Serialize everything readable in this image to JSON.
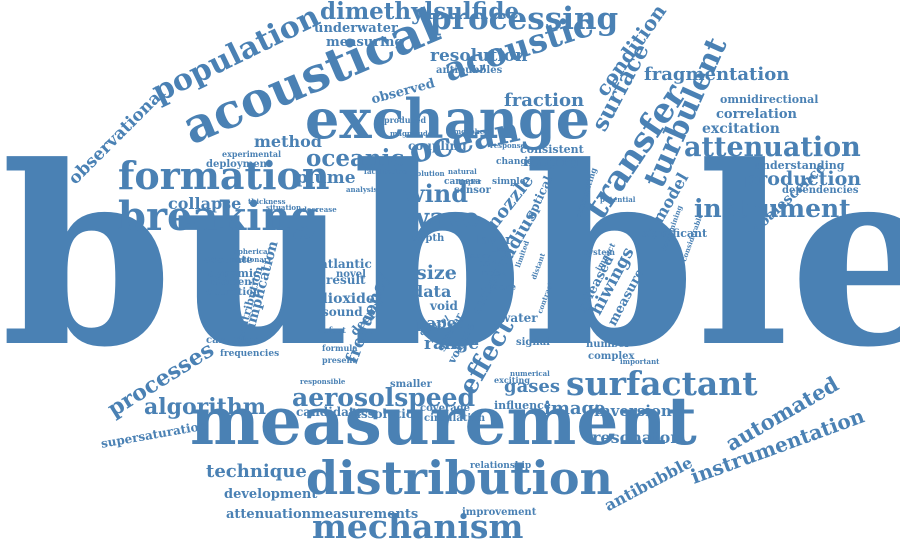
{
  "accent_color": "#4a81b4",
  "words": [
    {
      "id": "bubble",
      "text": "bubble"
    },
    {
      "id": "measurement",
      "text": "measurement"
    },
    {
      "id": "exchange",
      "text": "exchange"
    },
    {
      "id": "acoustical",
      "text": "acoustical"
    },
    {
      "id": "distribution",
      "text": "distribution"
    },
    {
      "id": "mechanism",
      "text": "mechanism"
    },
    {
      "id": "breaking",
      "text": "breaking"
    },
    {
      "id": "formation",
      "text": "formation"
    },
    {
      "id": "surfactant",
      "text": "surfactant"
    },
    {
      "id": "ocean",
      "text": "ocean"
    },
    {
      "id": "acoustic",
      "text": "acoustic"
    },
    {
      "id": "processing",
      "text": "processing"
    },
    {
      "id": "dimethylsulfide",
      "text": "dimethylsulfide"
    },
    {
      "id": "population",
      "text": "population"
    },
    {
      "id": "attenuation",
      "text": "attenuation"
    },
    {
      "id": "instrument",
      "text": "instrument"
    },
    {
      "id": "aerosolspeed",
      "text": "aerosolspeed"
    },
    {
      "id": "transfer",
      "text": "transfer"
    },
    {
      "id": "turbulent",
      "text": "turbulent"
    },
    {
      "id": "oceanic",
      "text": "oceanic"
    },
    {
      "id": "wave",
      "text": "wave"
    },
    {
      "id": "wind",
      "text": "wind"
    },
    {
      "id": "effect",
      "text": "effect"
    },
    {
      "id": "algorithm",
      "text": "algorithm"
    },
    {
      "id": "processes",
      "text": "processes"
    },
    {
      "id": "technique",
      "text": "technique"
    },
    {
      "id": "automated",
      "text": "automated"
    },
    {
      "id": "instrumentation",
      "text": "instrumentation"
    },
    {
      "id": "fragmentation",
      "text": "fragmentation"
    },
    {
      "id": "production",
      "text": "production"
    },
    {
      "id": "observational",
      "text": "observational"
    },
    {
      "id": "surface",
      "text": "surface"
    },
    {
      "id": "condition",
      "text": "condition"
    },
    {
      "id": "resolution",
      "text": "resolution"
    },
    {
      "id": "fraction",
      "text": "fraction"
    },
    {
      "id": "collapse",
      "text": "collapse"
    },
    {
      "id": "plume",
      "text": "plume"
    },
    {
      "id": "method",
      "text": "method"
    },
    {
      "id": "gases",
      "text": "gases"
    },
    {
      "id": "image",
      "text": "image"
    },
    {
      "id": "inversion",
      "text": "inversion"
    },
    {
      "id": "resonator",
      "text": "resonator"
    },
    {
      "id": "antibubble",
      "text": "antibubble"
    },
    {
      "id": "development",
      "text": "development"
    },
    {
      "id": "attenuationmeasurements",
      "text": "attenuationmeasurements"
    },
    {
      "id": "coalescence",
      "text": "coalescence"
    },
    {
      "id": "supersaturation",
      "text": "supersaturation"
    },
    {
      "id": "model",
      "text": "model"
    },
    {
      "id": "correlation",
      "text": "correlation"
    },
    {
      "id": "excitation",
      "text": "excitation"
    },
    {
      "id": "omnidirectional",
      "text": "omnidirectional"
    },
    {
      "id": "underwater",
      "text": "underwater"
    },
    {
      "id": "measuring",
      "text": "measuring"
    },
    {
      "id": "antibubbles",
      "text": "antibubbles"
    },
    {
      "id": "observed",
      "text": "observed"
    },
    {
      "id": "coupling",
      "text": "coupling"
    },
    {
      "id": "consistent",
      "text": "consistent"
    },
    {
      "id": "imaging",
      "text": "imaging"
    },
    {
      "id": "dependencies",
      "text": "dependencies"
    },
    {
      "id": "understanding",
      "text": "understanding"
    },
    {
      "id": "significant",
      "text": "significant"
    },
    {
      "id": "nozzle",
      "text": "nozzle"
    },
    {
      "id": "radius",
      "text": "radius"
    },
    {
      "id": "hiwings",
      "text": "hiwings"
    },
    {
      "id": "measure",
      "text": "measure"
    },
    {
      "id": "released",
      "text": "released"
    },
    {
      "id": "size",
      "text": "size"
    },
    {
      "id": "data",
      "text": "data"
    },
    {
      "id": "paper",
      "text": "paper"
    },
    {
      "id": "range",
      "text": "range"
    },
    {
      "id": "frequency",
      "text": "frequency"
    },
    {
      "id": "dioxide",
      "text": "dioxide"
    },
    {
      "id": "result",
      "text": "result"
    },
    {
      "id": "atlantic",
      "text": "atlantic"
    },
    {
      "id": "novel",
      "text": "novel"
    },
    {
      "id": "sound",
      "text": "sound"
    },
    {
      "id": "void",
      "text": "void"
    },
    {
      "id": "carbon",
      "text": "carbon"
    },
    {
      "id": "layer",
      "text": "layer"
    },
    {
      "id": "water",
      "text": "water"
    },
    {
      "id": "dynamic",
      "text": "dynamic"
    },
    {
      "id": "moment",
      "text": "moment"
    },
    {
      "id": "accurate",
      "text": "accurate"
    },
    {
      "id": "operation",
      "text": "operation"
    },
    {
      "id": "campaign",
      "text": "campaign"
    },
    {
      "id": "implication",
      "text": "implication"
    },
    {
      "id": "contribution",
      "text": "contribution"
    },
    {
      "id": "frequencies",
      "text": "frequencies"
    },
    {
      "id": "candidate",
      "text": "candidate"
    },
    {
      "id": "dissolution",
      "text": "dissolution"
    },
    {
      "id": "coverage",
      "text": "coverage"
    },
    {
      "id": "circulation",
      "text": "circulation"
    },
    {
      "id": "influence",
      "text": "influence"
    },
    {
      "id": "relationship",
      "text": "relationship"
    },
    {
      "id": "improvement",
      "text": "improvement"
    },
    {
      "id": "deployment",
      "text": "deployment"
    },
    {
      "id": "experimental",
      "text": "experimental"
    },
    {
      "id": "number",
      "text": "number"
    },
    {
      "id": "complex",
      "text": "complex"
    },
    {
      "id": "system",
      "text": "system"
    },
    {
      "id": "signal",
      "text": "signal"
    },
    {
      "id": "deeper",
      "text": "deeper"
    },
    {
      "id": "smaller",
      "text": "smaller"
    },
    {
      "id": "sensor",
      "text": "sensor"
    },
    {
      "id": "camera",
      "text": "camera"
    },
    {
      "id": "depth",
      "text": "depth"
    },
    {
      "id": "part",
      "text": "part"
    },
    {
      "id": "neck",
      "text": "neck"
    },
    {
      "id": "more",
      "text": "more"
    },
    {
      "id": "simple",
      "text": "simple"
    },
    {
      "id": "change",
      "text": "change"
    },
    {
      "id": "optical",
      "text": "optical"
    },
    {
      "id": "impact",
      "text": "impact"
    },
    {
      "id": "stimulating",
      "text": "stimulating"
    },
    {
      "id": "magnitude",
      "text": "magnitude"
    },
    {
      "id": "produced",
      "text": "produced"
    },
    {
      "id": "atmosphere",
      "text": "atmosphere"
    },
    {
      "id": "natural",
      "text": "natural"
    },
    {
      "id": "facilitating",
      "text": "facilitating"
    },
    {
      "id": "evolution",
      "text": "evolution"
    },
    {
      "id": "thickness",
      "text": "thickness"
    },
    {
      "id": "situation",
      "text": "situation"
    },
    {
      "id": "decrease",
      "text": "decrease"
    },
    {
      "id": "analysis",
      "text": "analysis"
    },
    {
      "id": "spherical",
      "text": "spherical"
    },
    {
      "id": "stationary",
      "text": "stationary"
    },
    {
      "id": "defect",
      "text": "defect"
    },
    {
      "id": "formula",
      "text": "formula"
    },
    {
      "id": "present",
      "text": "present"
    },
    {
      "id": "control",
      "text": "control"
    },
    {
      "id": "greater",
      "text": "greater"
    },
    {
      "id": "volume",
      "text": "volume"
    },
    {
      "id": "exciting",
      "text": "exciting"
    },
    {
      "id": "numerical",
      "text": "numerical"
    },
    {
      "id": "responsible",
      "text": "responsible"
    },
    {
      "id": "important",
      "text": "important"
    },
    {
      "id": "potential",
      "text": "potential"
    },
    {
      "id": "determining",
      "text": "determining"
    },
    {
      "id": "considerable",
      "text": "considerable"
    },
    {
      "id": "response",
      "text": "response"
    },
    {
      "id": "study",
      "text": "study"
    },
    {
      "id": "time",
      "text": "time"
    },
    {
      "id": "limited",
      "text": "limited"
    },
    {
      "id": "distant",
      "text": "distant"
    },
    {
      "id": "contrast",
      "text": "contrast"
    },
    {
      "id": "upper",
      "text": "upper"
    }
  ]
}
